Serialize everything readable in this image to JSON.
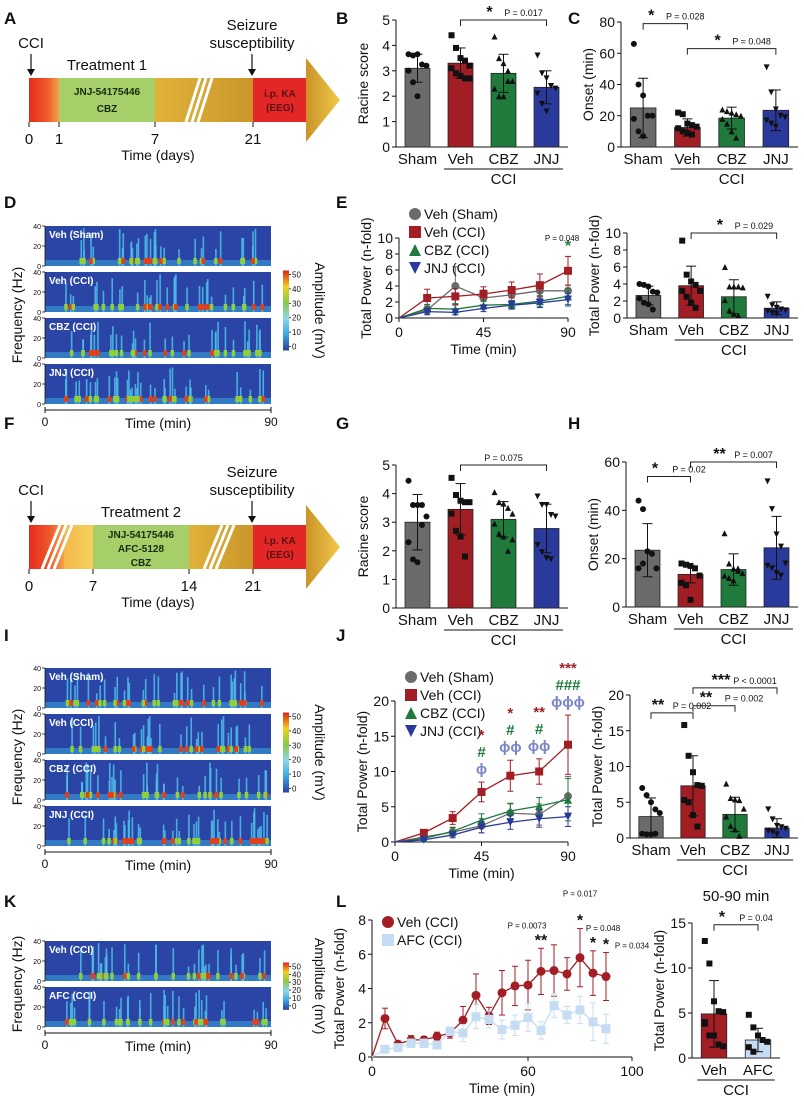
{
  "colors": {
    "sham": "#6b6b6b",
    "veh": "#a31d24",
    "cbz": "#1f7a3c",
    "jnj": "#2a3a9c",
    "afc": "#c5dcf2",
    "phi": "#7b86c6",
    "red": "#e0211f",
    "green": "#a6cf6a",
    "gold": "#d9a82a"
  },
  "panel_labels": {
    "A": "A",
    "B": "B",
    "C": "C",
    "D": "D",
    "E": "E",
    "F": "F",
    "G": "G",
    "H": "H",
    "I": "I",
    "J": "J",
    "K": "K",
    "L": "L"
  },
  "timeline_A": {
    "cci": "CCI",
    "treatment": "Treatment 1",
    "drugs": [
      "JNJ-54175446",
      "CBZ"
    ],
    "seizure": [
      "Seizure",
      "susceptibility"
    ],
    "kainate": [
      "i.p. KA",
      "(EEG)"
    ],
    "ticks": [
      "0",
      "1",
      "7",
      "21"
    ],
    "xlabel": "Time (days)"
  },
  "timeline_F": {
    "cci": "CCI",
    "treatment": "Treatment 2",
    "drugs": [
      "JNJ-54175446",
      "AFC-5128",
      "CBZ"
    ],
    "seizure": [
      "Seizure",
      "susceptibility"
    ],
    "kainate": [
      "i.p. KA",
      "(EEG)"
    ],
    "ticks": [
      "0",
      "7",
      "14",
      "21"
    ],
    "xlabel": "Time (days)"
  },
  "spectrogram_common": {
    "ylabel": "Frequency (Hz)",
    "yticks": [
      "40",
      "20",
      "0"
    ],
    "xticks": [
      "0",
      "90"
    ],
    "xlabel": "Time (min)",
    "colorbar_label": "Amplitude (mV)",
    "colorbar_ticks": [
      "50",
      "40",
      "30",
      "20",
      "10",
      "0"
    ]
  },
  "spectrogram_D": {
    "rows": [
      "Veh (Sham)",
      "Veh (CCI)",
      "CBZ (CCI)",
      "JNJ (CCI)"
    ]
  },
  "spectrogram_I": {
    "rows": [
      "Veh (Sham)",
      "Veh (CCI)",
      "CBZ (CCI)",
      "JNJ (CCI)"
    ]
  },
  "spectrogram_K": {
    "rows": [
      "Veh (CCI)",
      "AFC (CCI)"
    ]
  },
  "group_label": "CCI",
  "chart_data": [
    {
      "id": "B",
      "type": "bar",
      "ylabel": "Racine score",
      "ylim": [
        0,
        5
      ],
      "yticks": [
        0,
        1,
        2,
        3,
        4,
        5
      ],
      "categories": [
        "Sham",
        "Veh",
        "CBZ",
        "JNJ"
      ],
      "values": [
        3.1,
        3.3,
        2.9,
        2.35
      ],
      "errors": [
        0.55,
        0.6,
        0.75,
        0.65
      ],
      "points": [
        [
          3.65,
          3.6,
          3.65,
          3.25,
          3.2,
          3.0,
          2.55,
          2.0
        ],
        [
          4.4,
          3.9,
          3.5,
          3.4,
          3.2,
          3.1,
          2.9,
          2.8,
          2.7,
          2.7
        ],
        [
          4.35,
          3.5,
          3.3,
          3.0,
          2.6,
          2.3,
          2.0,
          2.0,
          2.6
        ],
        [
          3.6,
          2.9,
          2.7,
          2.4,
          2.3,
          2.1,
          1.7,
          1.4,
          2.4
        ]
      ],
      "significance": [
        {
          "from": 1,
          "to": 3,
          "stars": "*",
          "p": "P = 0.017",
          "y": 5.0
        }
      ]
    },
    {
      "id": "C",
      "type": "bar",
      "ylabel": "Onset (min)",
      "ylim": [
        0,
        80
      ],
      "yticks": [
        0,
        20,
        40,
        60,
        80
      ],
      "categories": [
        "Sham",
        "Veh",
        "CBZ",
        "JNJ"
      ],
      "values": [
        25,
        12.5,
        18.5,
        23.5
      ],
      "errors": [
        19,
        5.5,
        7,
        13
      ],
      "points": [
        [
          66,
          40,
          33,
          20,
          20,
          18,
          10,
          7
        ],
        [
          22,
          21,
          15,
          14,
          13,
          12,
          10,
          9,
          8
        ],
        [
          24,
          23,
          22,
          21,
          20,
          18,
          15,
          10,
          6
        ],
        [
          51,
          35,
          24,
          20,
          19,
          17,
          15,
          13
        ]
      ],
      "significance": [
        {
          "from": 0,
          "to": 1,
          "stars": "*",
          "p": "P = 0.028",
          "y": 79
        },
        {
          "from": 1,
          "to": 3,
          "stars": "*",
          "p": "P = 0.048",
          "y": 63
        }
      ]
    },
    {
      "id": "E-line",
      "type": "line",
      "ylabel": "Total Power (n-fold)",
      "xlabel": "Time (min)",
      "xlim": [
        0,
        90
      ],
      "ylim": [
        0,
        10
      ],
      "xticks": [
        0,
        45,
        90
      ],
      "yticks": [
        0,
        2,
        4,
        6,
        8,
        10
      ],
      "x": [
        0,
        15,
        30,
        45,
        60,
        75,
        90
      ],
      "series": [
        {
          "name": "Veh (Sham)",
          "marker": "circle",
          "values": [
            0,
            1.0,
            4.0,
            2.5,
            2.9,
            3.4,
            3.4
          ],
          "errors": [
            0,
            0.6,
            2.4,
            1.0,
            0.7,
            0.9,
            0.7
          ]
        },
        {
          "name": "Veh (CCI)",
          "marker": "square",
          "values": [
            0,
            2.5,
            2.7,
            3.0,
            3.5,
            4.1,
            5.9
          ],
          "errors": [
            0,
            1.1,
            1.0,
            0.9,
            1.0,
            1.4,
            1.8
          ]
        },
        {
          "name": "CBZ (CCI)",
          "marker": "triangle-up",
          "values": [
            0,
            1.2,
            1.1,
            1.6,
            1.7,
            2.1,
            2.7
          ],
          "errors": [
            0,
            0.5,
            0.7,
            0.5,
            0.5,
            0.7,
            1.0
          ]
        },
        {
          "name": "JNJ (CCI)",
          "marker": "triangle-down",
          "values": [
            0,
            0.8,
            0.7,
            1.2,
            1.6,
            1.9,
            2.3
          ],
          "errors": [
            0,
            0.3,
            0.3,
            0.4,
            0.5,
            0.6,
            0.8
          ]
        }
      ],
      "annotations": [
        {
          "x": 90,
          "text": "*",
          "color": "cbz",
          "p": "P = 0.048"
        }
      ]
    },
    {
      "id": "E-bar",
      "type": "bar",
      "ylabel": "Total Power (n-fold)",
      "ylim": [
        0,
        10
      ],
      "yticks": [
        0,
        2,
        4,
        6,
        8,
        10
      ],
      "categories": [
        "Sham",
        "Veh",
        "CBZ",
        "JNJ"
      ],
      "values": [
        2.65,
        3.8,
        2.5,
        1.15
      ],
      "errors": [
        1.1,
        2.3,
        2.0,
        0.75
      ],
      "points": [
        [
          4.0,
          3.9,
          3.7,
          3.1,
          3.0,
          2.3,
          1.8,
          1.6,
          1.0
        ],
        [
          9.1,
          5.1,
          4.3,
          3.9,
          3.2,
          3.2,
          2.5,
          1.8,
          1.2
        ],
        [
          6.0,
          3.7,
          3.7,
          3.7,
          3.6,
          2.1,
          0.9,
          0.5,
          0.3
        ],
        [
          2.5,
          1.5,
          1.2,
          1.0,
          0.9,
          0.8,
          0.6,
          0.5
        ]
      ],
      "significance": [
        {
          "from": 1,
          "to": 3,
          "stars": "*",
          "p": "P = 0.029",
          "y": 10
        }
      ]
    },
    {
      "id": "G",
      "type": "bar",
      "ylabel": "Racine score",
      "ylim": [
        0,
        5
      ],
      "yticks": [
        0,
        1,
        2,
        3,
        4,
        5
      ],
      "categories": [
        "Sham",
        "Veh",
        "CBZ",
        "JNJ"
      ],
      "values": [
        3.0,
        3.45,
        3.1,
        2.78
      ],
      "errors": [
        0.97,
        0.9,
        0.62,
        0.85
      ],
      "points": [
        [
          4.45,
          3.6,
          3.6,
          3.6,
          3.2,
          2.3,
          1.7,
          1.6,
          2.9
        ],
        [
          4.55,
          3.95,
          3.75,
          3.7,
          3.7,
          3.3,
          2.7,
          2.5,
          1.8
        ],
        [
          4.05,
          3.7,
          3.65,
          3.5,
          3.3,
          2.95,
          2.6,
          2.5,
          2.0,
          2.4
        ],
        [
          3.9,
          3.6,
          3.6,
          3.25,
          3.2,
          2.2,
          1.95,
          1.75,
          1.7
        ]
      ],
      "significance": [
        {
          "from": 1,
          "to": 3,
          "stars": "",
          "p": "P = 0.075",
          "y": 5.0
        }
      ]
    },
    {
      "id": "H",
      "type": "bar",
      "ylabel": "Onset (min)",
      "ylim": [
        0,
        60
      ],
      "yticks": [
        0,
        20,
        40,
        60
      ],
      "categories": [
        "Sham",
        "Veh",
        "CBZ",
        "JNJ"
      ],
      "values": [
        23.5,
        13.5,
        15.5,
        24.5
      ],
      "errors": [
        11,
        3.5,
        6.5,
        13
      ],
      "points": [
        [
          44,
          40.5,
          23,
          22,
          16,
          16,
          18,
          23
        ],
        [
          18,
          17.5,
          17,
          16,
          13,
          10,
          9,
          3
        ],
        [
          30.5,
          18,
          16,
          15,
          14,
          13,
          12,
          11,
          16
        ],
        [
          52,
          40.5,
          30,
          25,
          18,
          17,
          16,
          14,
          13
        ]
      ],
      "significance": [
        {
          "from": 0,
          "to": 1,
          "stars": "*",
          "p": "P = 0.02",
          "y": 54
        },
        {
          "from": 1,
          "to": 3,
          "stars": "**",
          "p": "P = 0.007",
          "y": 60
        }
      ]
    },
    {
      "id": "J-line",
      "type": "line",
      "ylabel": "Total Power (n-fold)",
      "xlabel": "Time (min)",
      "xlim": [
        0,
        90
      ],
      "ylim": [
        0,
        20
      ],
      "xticks": [
        0,
        45,
        90
      ],
      "yticks": [
        0,
        5,
        10,
        15,
        20
      ],
      "x": [
        0,
        15,
        30,
        45,
        60,
        75,
        90
      ],
      "series": [
        {
          "name": "Veh (Sham)",
          "marker": "circle",
          "values": [
            0,
            0.7,
            1.4,
            2.3,
            4.1,
            3.9,
            6.5
          ],
          "errors": [
            0,
            0.3,
            0.6,
            1.0,
            1.3,
            1.5,
            2.8
          ]
        },
        {
          "name": "Veh (CCI)",
          "marker": "square",
          "values": [
            0,
            1.3,
            3.4,
            7.1,
            9.4,
            10.0,
            13.8
          ],
          "errors": [
            0,
            0.3,
            0.9,
            1.4,
            2.2,
            1.8,
            4.2
          ]
        },
        {
          "name": "CBZ (CCI)",
          "marker": "triangle-up",
          "values": [
            0,
            0.5,
            1.5,
            3.1,
            4.4,
            5.1,
            6.0
          ],
          "errors": [
            0,
            0.3,
            0.6,
            0.9,
            1.1,
            1.2,
            3.0
          ]
        },
        {
          "name": "JNJ (CCI)",
          "marker": "triangle-down",
          "values": [
            0,
            0.3,
            1.0,
            2.1,
            2.8,
            3.3,
            3.6
          ],
          "errors": [
            0,
            0.2,
            0.4,
            0.8,
            1.0,
            1.2,
            1.4
          ]
        }
      ],
      "annotations": [
        {
          "x": 45,
          "rows": [
            {
              "text": "*",
              "color": "veh"
            },
            {
              "text": "#",
              "color": "cbz"
            },
            {
              "text": "ϕ",
              "color": "phi"
            }
          ]
        },
        {
          "x": 60,
          "rows": [
            {
              "text": "*",
              "color": "veh"
            },
            {
              "text": "#",
              "color": "cbz"
            },
            {
              "text": "ϕϕ",
              "color": "phi"
            }
          ]
        },
        {
          "x": 75,
          "rows": [
            {
              "text": "**",
              "color": "veh"
            },
            {
              "text": "#",
              "color": "cbz"
            },
            {
              "text": "ϕϕ",
              "color": "phi"
            }
          ]
        },
        {
          "x": 90,
          "rows": [
            {
              "text": "***",
              "color": "veh"
            },
            {
              "text": "###",
              "color": "cbz"
            },
            {
              "text": "ϕϕϕ",
              "color": "phi"
            }
          ]
        }
      ]
    },
    {
      "id": "J-bar",
      "type": "bar",
      "ylabel": "Total Power (n-fold)",
      "ylim": [
        0,
        20
      ],
      "yticks": [
        0,
        5,
        10,
        15,
        20
      ],
      "categories": [
        "Sham",
        "Veh",
        "CBZ",
        "JNJ"
      ],
      "values": [
        3.0,
        7.3,
        3.3,
        1.4
      ],
      "errors": [
        2.6,
        4.2,
        2.4,
        1.3
      ],
      "points": [
        [
          7.0,
          6.0,
          5.0,
          4.0,
          3.5,
          0.6,
          0.5,
          0.5,
          0.6
        ],
        [
          15.8,
          11.5,
          9.2,
          7.4,
          7.3,
          5.3,
          5.0,
          3.2,
          1.6
        ],
        [
          7.6,
          5.6,
          5.4,
          5.3,
          4.1,
          3.0,
          1.7,
          1.2,
          0.3
        ],
        [
          4.0,
          2.6,
          1.7,
          1.5,
          1.3,
          1.0,
          0.8,
          0.5
        ]
      ],
      "significance": [
        {
          "from": 0,
          "to": 1,
          "stars": "**",
          "p": "P = 0.002",
          "y": 17.5
        },
        {
          "from": 1,
          "to": 2,
          "stars": "**",
          "p": "P = 0.002",
          "y": 18.5
        },
        {
          "from": 1,
          "to": 3,
          "stars": "***",
          "p": "P < 0.0001",
          "y": 21
        }
      ]
    },
    {
      "id": "L-line",
      "type": "line",
      "ylabel": "Total Power (n-fold)",
      "xlabel": "Time (min)",
      "xlim": [
        0,
        100
      ],
      "ylim": [
        0,
        8
      ],
      "xticks": [
        0,
        60,
        100
      ],
      "yticks": [
        0,
        2,
        4,
        6,
        8
      ],
      "x": [
        0,
        5,
        10,
        15,
        20,
        25,
        30,
        35,
        40,
        45,
        50,
        55,
        60,
        65,
        70,
        75,
        80,
        85,
        90
      ],
      "series": [
        {
          "name": "Veh (CCI)",
          "marker": "circle",
          "values": [
            0,
            2.25,
            0.75,
            1.0,
            1.0,
            1.2,
            1.4,
            2.15,
            3.6,
            2.4,
            3.75,
            4.15,
            4.2,
            5.0,
            5.05,
            4.85,
            5.8,
            4.9,
            4.7
          ],
          "errors": [
            0,
            0.6,
            0.1,
            0.25,
            0.2,
            0.25,
            0.3,
            0.8,
            1.25,
            0.5,
            1.3,
            1.15,
            1.45,
            1.35,
            1.5,
            0.95,
            1.7,
            1.3,
            1.4
          ]
        },
        {
          "name": "AFC (CCI)",
          "marker": "square",
          "values": [
            0,
            0.45,
            0.55,
            0.8,
            0.8,
            0.7,
            1.5,
            1.4,
            2.35,
            2.2,
            1.6,
            1.85,
            2.3,
            1.55,
            3.0,
            2.45,
            2.75,
            2.05,
            1.65
          ],
          "errors": [
            0,
            0.15,
            0.15,
            0.25,
            0.25,
            0.2,
            0.25,
            0.5,
            0.7,
            0.5,
            0.55,
            0.6,
            0.8,
            0.5,
            0.7,
            0.5,
            0.8,
            1.1,
            0.85
          ]
        }
      ],
      "annotations": [
        {
          "x": 65,
          "text": "**",
          "p": "P = 0.0073"
        },
        {
          "x": 80,
          "text": "*",
          "p": "P = 0.017"
        },
        {
          "x": 85,
          "text": "*",
          "p": "P = 0.048"
        },
        {
          "x": 90,
          "text": "*",
          "p": "P = 0.034"
        }
      ]
    },
    {
      "id": "L-bar",
      "type": "bar",
      "title": "50-90 min",
      "ylabel": "Total Power (n-fold)",
      "ylim": [
        0,
        15
      ],
      "yticks": [
        0,
        5,
        10,
        15
      ],
      "categories": [
        "Veh",
        "AFC"
      ],
      "values": [
        4.9,
        2.0
      ],
      "errors": [
        3.7,
        1.3
      ],
      "points": [
        [
          13.0,
          10.5,
          6.3,
          5.2,
          5.1,
          4.0,
          2.5,
          2.5,
          1.5,
          1.3,
          3.8
        ],
        [
          4.8,
          3.4,
          2.5,
          2.0,
          1.8,
          1.2,
          0.7,
          2.5
        ]
      ],
      "significance": [
        {
          "from": 0,
          "to": 1,
          "stars": "*",
          "p": "P = 0.04",
          "y": 14.8
        }
      ]
    }
  ]
}
